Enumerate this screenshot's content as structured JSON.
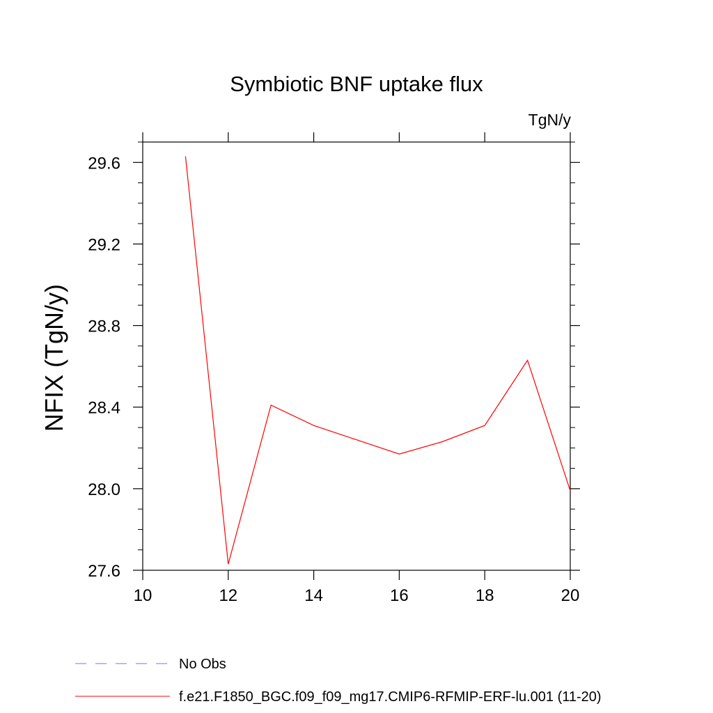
{
  "chart_data": {
    "type": "line",
    "title": "Symbiotic BNF uptake flux",
    "units_label": "TgN/y",
    "xlabel": "",
    "ylabel": "NFIX  (TgN/y)",
    "xlim": [
      10,
      20
    ],
    "ylim": [
      27.6,
      29.7
    ],
    "x_ticks": [
      10,
      12,
      14,
      16,
      18,
      20
    ],
    "x_tick_labels": [
      "10",
      "12",
      "14",
      "16",
      "18",
      "20"
    ],
    "y_ticks": [
      27.6,
      28.0,
      28.4,
      28.8,
      29.2,
      29.6
    ],
    "y_tick_labels": [
      "27.6",
      "28.0",
      "28.4",
      "28.8",
      "29.2",
      "29.6"
    ],
    "grid": false,
    "legend_position": "bottom",
    "series": [
      {
        "name": "No Obs",
        "color": "#7a7acc",
        "dash": "dashed",
        "x": [],
        "y": []
      },
      {
        "name": "f.e21.F1850_BGC.f09_f09_mg17.CMIP6-RFMIP-ERF-lu.001 (11-20)",
        "color": "#ff0000",
        "dash": "solid",
        "x": [
          11,
          12,
          13,
          14,
          15,
          16,
          17,
          18,
          19,
          20
        ],
        "y": [
          29.63,
          27.63,
          28.41,
          28.31,
          28.24,
          28.17,
          28.23,
          28.31,
          28.63,
          27.99
        ]
      }
    ]
  }
}
